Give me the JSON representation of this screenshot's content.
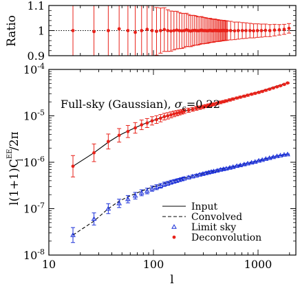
{
  "chart_data": [
    {
      "type": "scatter",
      "panel": "ratio",
      "ylabel": "Ratio",
      "xscale": "log",
      "xlim": [
        10,
        2300
      ],
      "ylim": [
        0.9,
        1.1
      ],
      "yticks": [
        0.9,
        1.0,
        1.1
      ],
      "ytick_labels": [
        "0.9",
        "1",
        "1.1"
      ],
      "reference_line": 1.0,
      "color": "#e8221a",
      "series": [
        {
          "x": [
            17,
            27,
            37,
            47,
            57,
            67,
            77,
            87,
            97,
            107,
            117,
            127,
            137,
            147,
            157,
            167,
            177,
            187,
            197,
            207,
            217,
            227,
            237,
            247,
            257,
            267,
            277,
            287,
            297,
            307,
            317,
            327,
            337,
            347,
            357,
            367,
            377,
            387,
            397,
            407,
            417,
            427,
            437,
            447,
            457,
            467,
            477,
            487,
            497,
            507,
            547,
            597,
            647,
            707,
            767,
            837,
            907,
            987,
            1077,
            1177,
            1297,
            1437,
            1597,
            1777,
            1977
          ],
          "y": [
            1.0,
            0.996,
            1.0,
            1.007,
            1.0,
            0.993,
            1.0,
            1.005,
            1.0,
            0.997,
            1.0,
            1.004,
            1.0,
            0.998,
            1.0,
            1.002,
            1.0,
            0.999,
            1.0,
            1.003,
            1.0,
            0.998,
            1.0,
            1.001,
            1.0,
            0.999,
            1.0,
            1.002,
            1.0,
            1.0,
            1.0,
            0.999,
            1.0,
            1.001,
            1.0,
            0.999,
            1.0,
            1.001,
            1.0,
            1.0,
            1.0,
            0.999,
            1.0,
            1.0,
            1.0,
            1.001,
            1.0,
            1.0,
            1.0,
            1.0,
            1.0,
            0.999,
            1.0,
            1.0,
            1.0,
            1.0,
            0.999,
            1.0,
            1.0,
            1.001,
            1.0,
            1.002,
            1.003,
            1.005,
            1.009
          ],
          "err": [
            0.24,
            0.22,
            0.18,
            0.15,
            0.14,
            0.12,
            0.11,
            0.105,
            0.1,
            0.095,
            0.09,
            0.087,
            0.083,
            0.08,
            0.077,
            0.075,
            0.072,
            0.07,
            0.068,
            0.066,
            0.064,
            0.062,
            0.061,
            0.059,
            0.058,
            0.056,
            0.055,
            0.054,
            0.053,
            0.052,
            0.051,
            0.05,
            0.049,
            0.048,
            0.047,
            0.046,
            0.046,
            0.045,
            0.044,
            0.044,
            0.043,
            0.042,
            0.042,
            0.041,
            0.041,
            0.04,
            0.04,
            0.039,
            0.039,
            0.038,
            0.037,
            0.035,
            0.034,
            0.032,
            0.031,
            0.029,
            0.028,
            0.027,
            0.026,
            0.025,
            0.024,
            0.023,
            0.021,
            0.02,
            0.019
          ]
        }
      ]
    },
    {
      "type": "line",
      "panel": "spectrum",
      "xlabel": "l",
      "ylabel": "l(1+1)C_l^EE/2π",
      "ylabel_parts": {
        "pre": "l(1+1)C",
        "sup": "EE",
        "sub": "l",
        "post": "/2π"
      },
      "annotation": "Full-sky (Gaussian), σ_ϵ=0.22",
      "annotation_parts": {
        "pre": "Full-sky (Gaussian), ",
        "sym": "σ",
        "sub": "ϵ",
        "post": "=0.22"
      },
      "xscale": "log",
      "yscale": "log",
      "xlim": [
        10,
        2300
      ],
      "ylim": [
        1e-08,
        0.0001
      ],
      "xticks": [
        10,
        100,
        1000
      ],
      "xtick_labels": [
        "10",
        "100",
        "1000"
      ],
      "yticks": [
        1e-08,
        1e-07,
        1e-06,
        1e-05,
        0.0001
      ],
      "ytick_labels": [
        {
          "base": "10",
          "exp": "-8"
        },
        {
          "base": "10",
          "exp": "-7"
        },
        {
          "base": "10",
          "exp": "-6"
        },
        {
          "base": "10",
          "exp": "-5"
        },
        {
          "base": "10",
          "exp": "-4"
        }
      ],
      "legend_position": "bottom-right",
      "legend": [
        {
          "label": "Input",
          "style": "solid-line"
        },
        {
          "label": "Convolved",
          "style": "dashed-line"
        },
        {
          "label": "Limit sky",
          "style": "blue-triangle"
        },
        {
          "label": "Deconvolution",
          "style": "red-dot"
        }
      ],
      "colors": {
        "deconvolution": "#e8221a",
        "limit_sky": "#1a2fd8",
        "lines": "#000000"
      },
      "series": [
        {
          "name": "Input",
          "x": [
            17,
            27,
            37,
            47,
            57,
            77,
            97,
            127,
            157,
            197,
            257,
            337,
            437,
            557,
            707,
            907,
            1157,
            1477,
            1977
          ],
          "y": [
            8.2e-07,
            1.6e-06,
            2.7e-06,
            3.8e-06,
            4.7e-06,
            6.4e-06,
            7.8e-06,
            9.6e-06,
            1.1e-05,
            1.26e-05,
            1.45e-05,
            1.68e-05,
            1.95e-05,
            2.25e-05,
            2.6e-05,
            3.05e-05,
            3.6e-05,
            4.3e-05,
            5.2e-05
          ]
        },
        {
          "name": "Convolved",
          "x": [
            17,
            27,
            37,
            47,
            57,
            77,
            97,
            127,
            157,
            197,
            257,
            337,
            437,
            557,
            707,
            907,
            1157,
            1477,
            1977
          ],
          "y": [
            2.7e-08,
            5.4e-08,
            1e-07,
            1.45e-07,
            1.8e-07,
            2.4e-07,
            2.9e-07,
            3.5e-07,
            3.95e-07,
            4.5e-07,
            5.2e-07,
            6e-07,
            6.9e-07,
            7.8e-07,
            8.9e-07,
            1.02e-06,
            1.16e-06,
            1.32e-06,
            1.48e-06
          ]
        },
        {
          "name": "Limit sky",
          "x": [
            17,
            27,
            37,
            47,
            57,
            67,
            77,
            87,
            97,
            107,
            117,
            127,
            137,
            147,
            157,
            167,
            177,
            187,
            197,
            217,
            237,
            257,
            277,
            297,
            317,
            337,
            357,
            377,
            407,
            437,
            467,
            497,
            537,
            577,
            627,
            677,
            737,
            797,
            867,
            937,
            1017,
            1097,
            1187,
            1287,
            1397,
            1517,
            1637,
            1777,
            1917
          ],
          "y": [
            2.7e-08,
            6e-08,
            1e-07,
            1.3e-07,
            1.6e-07,
            1.9e-07,
            2.2e-07,
            2.4e-07,
            2.7e-07,
            2.9e-07,
            3.1e-07,
            3.35e-07,
            3.5e-07,
            3.7e-07,
            3.85e-07,
            4e-07,
            4.15e-07,
            4.3e-07,
            4.45e-07,
            4.7e-07,
            4.95e-07,
            5.15e-07,
            5.4e-07,
            5.6e-07,
            5.8e-07,
            6e-07,
            6.2e-07,
            6.35e-07,
            6.6e-07,
            6.9e-07,
            7.1e-07,
            7.3e-07,
            7.6e-07,
            7.9e-07,
            8.3e-07,
            8.6e-07,
            9e-07,
            9.4e-07,
            9.8e-07,
            1.02e-06,
            1.08e-06,
            1.12e-06,
            1.18e-06,
            1.23e-06,
            1.29e-06,
            1.35e-06,
            1.4e-06,
            1.45e-06,
            1.48e-06
          ],
          "err_factor": [
            1.45,
            1.35,
            1.28,
            1.23,
            1.2,
            1.18,
            1.16,
            1.15,
            1.14,
            1.13,
            1.12,
            1.11,
            1.1,
            1.1,
            1.09,
            1.09,
            1.08,
            1.08,
            1.08,
            1.07,
            1.07,
            1.07,
            1.06,
            1.06,
            1.06,
            1.06,
            1.05,
            1.05,
            1.05,
            1.05,
            1.05,
            1.04,
            1.04,
            1.04,
            1.04,
            1.04,
            1.04,
            1.03,
            1.03,
            1.03,
            1.03,
            1.03,
            1.03,
            1.03,
            1.03,
            1.02,
            1.02,
            1.02,
            1.02
          ]
        },
        {
          "name": "Deconvolution",
          "x": [
            17,
            27,
            37,
            47,
            57,
            67,
            77,
            87,
            97,
            107,
            117,
            127,
            137,
            147,
            157,
            167,
            177,
            187,
            197,
            217,
            237,
            257,
            277,
            297,
            317,
            337,
            357,
            377,
            407,
            437,
            467,
            497,
            537,
            577,
            627,
            677,
            737,
            797,
            867,
            937,
            1017,
            1097,
            1187,
            1287,
            1397,
            1517,
            1637,
            1777,
            1917
          ],
          "y": [
            8.2e-07,
            1.6e-06,
            2.8e-06,
            3.8e-06,
            4.6e-06,
            5.5e-06,
            6.4e-06,
            7e-06,
            7.8e-06,
            8.3e-06,
            8.9e-06,
            9.6e-06,
            1e-05,
            1.05e-05,
            1.1e-05,
            1.14e-05,
            1.18e-05,
            1.22e-05,
            1.26e-05,
            1.32e-05,
            1.38e-05,
            1.45e-05,
            1.5e-05,
            1.56e-05,
            1.62e-05,
            1.68e-05,
            1.73e-05,
            1.78e-05,
            1.86e-05,
            1.95e-05,
            2.02e-05,
            2.1e-05,
            2.2e-05,
            2.3e-05,
            2.42e-05,
            2.53e-05,
            2.65e-05,
            2.78e-05,
            2.92e-05,
            3.05e-05,
            3.2e-05,
            3.36e-05,
            3.55e-05,
            3.75e-05,
            3.98e-05,
            4.22e-05,
            4.45e-05,
            4.75e-05,
            5.1e-05
          ],
          "err_factor": [
            1.7,
            1.55,
            1.45,
            1.4,
            1.35,
            1.3,
            1.27,
            1.25,
            1.23,
            1.21,
            1.2,
            1.18,
            1.17,
            1.16,
            1.15,
            1.14,
            1.13,
            1.12,
            1.12,
            1.11,
            1.1,
            1.1,
            1.09,
            1.09,
            1.08,
            1.08,
            1.08,
            1.07,
            1.07,
            1.07,
            1.06,
            1.06,
            1.06,
            1.06,
            1.05,
            1.05,
            1.05,
            1.05,
            1.04,
            1.04,
            1.04,
            1.04,
            1.04,
            1.03,
            1.03,
            1.03,
            1.03,
            1.03,
            1.03
          ]
        }
      ]
    }
  ]
}
